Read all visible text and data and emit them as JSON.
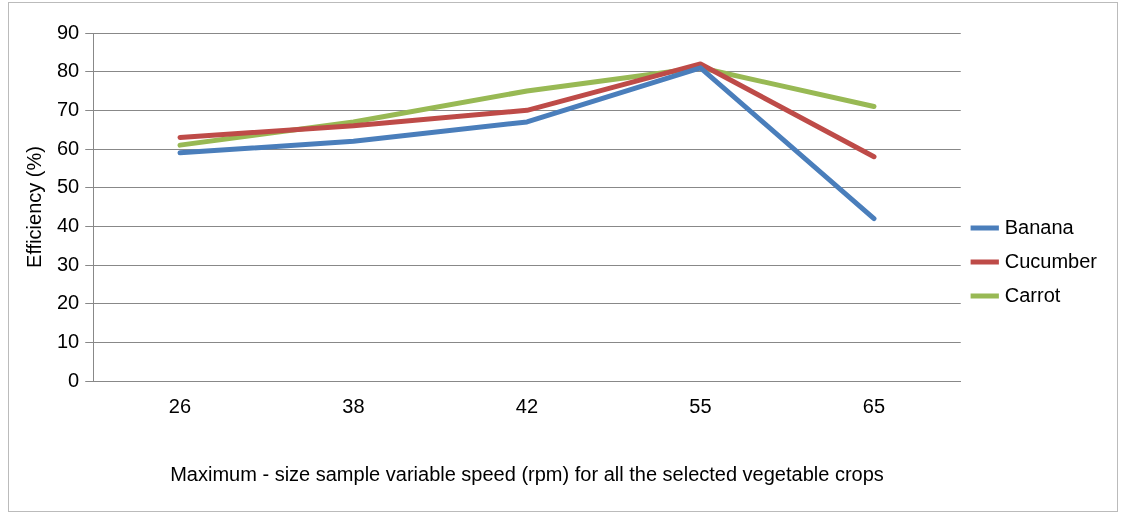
{
  "chart_data": {
    "type": "line",
    "xlabel": "Maximum - size sample variable speed (rpm) for all the selected vegetable crops",
    "ylabel": "Efficiency (%)",
    "categories": [
      "26",
      "38",
      "42",
      "55",
      "65"
    ],
    "series": [
      {
        "name": "Banana",
        "color": "#4a7ebb",
        "values": [
          59,
          62,
          67,
          81,
          42
        ]
      },
      {
        "name": "Cucumber",
        "color": "#be4b48",
        "values": [
          63,
          66,
          70,
          82,
          58
        ]
      },
      {
        "name": "Carrot",
        "color": "#98b954",
        "values": [
          61,
          67,
          75,
          81,
          71
        ]
      }
    ],
    "ylim": [
      0,
      90
    ],
    "yticks": [
      0,
      10,
      20,
      30,
      40,
      50,
      60,
      70,
      80,
      90
    ],
    "grid": "y",
    "legend": "right",
    "marker": "none",
    "line_style": "solid"
  }
}
